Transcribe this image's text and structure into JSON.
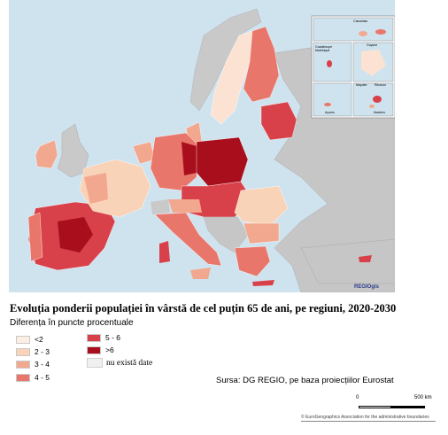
{
  "map": {
    "logo": "REGIOgis",
    "insets": [
      "Canarias",
      "Guadeloupe Martinique",
      "Guyane",
      "Mayotte",
      "Réunion",
      "Açores",
      "Madeira"
    ]
  },
  "title": "Evoluția ponderii populației în vârstă de cel puțin 65 de ani, pe regiuni, 2020-2030",
  "subtitle": "Diferența în puncte procentuale",
  "legend": [
    {
      "label": "<2",
      "color": "#fdeee3"
    },
    {
      "label": "2 - 3",
      "color": "#f9d3b8"
    },
    {
      "label": "3 - 4",
      "color": "#f2a88f"
    },
    {
      "label": "4 - 5",
      "color": "#e9766a"
    },
    {
      "label": "5 - 6",
      "color": "#d9414a"
    },
    {
      "label": ">6",
      "color": "#a90e1d"
    }
  ],
  "nodata": "nu există date",
  "source": "Sursa: DG REGIO, pe baza proiecțiilor Eurostat",
  "scale": {
    "start": "0",
    "end": "500 km"
  },
  "copyright": "© EuroGeographics Association for the administrative boundaries"
}
